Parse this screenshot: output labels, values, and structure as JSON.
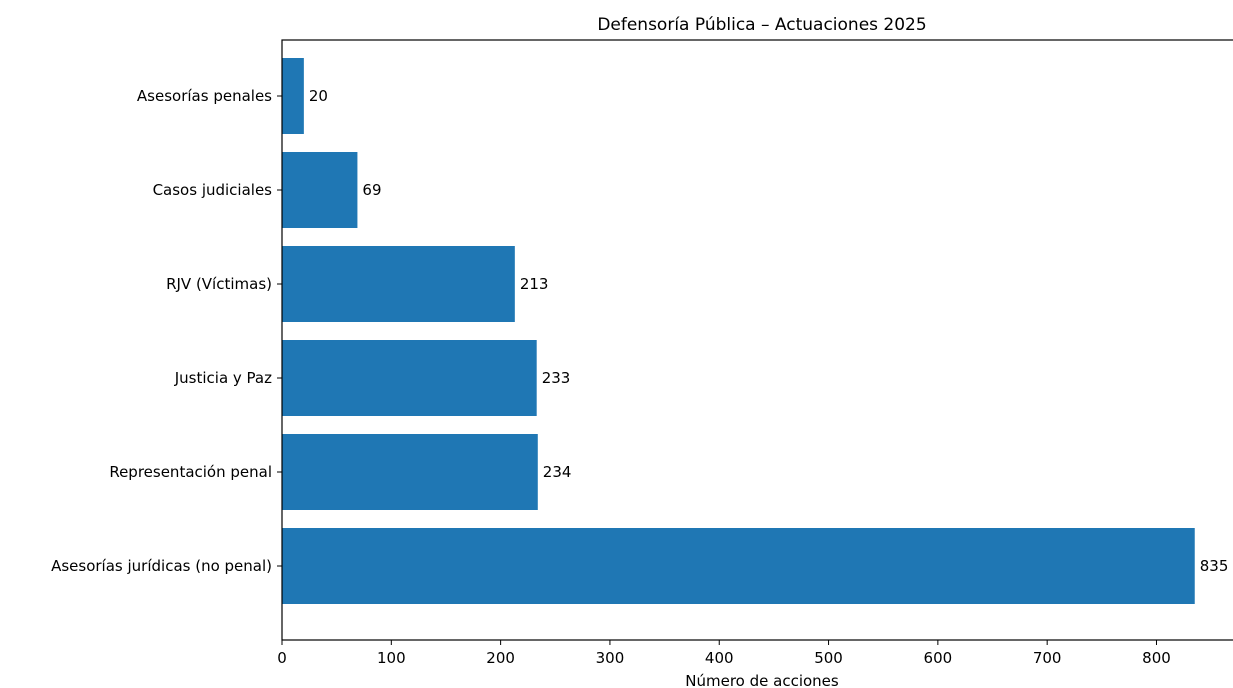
{
  "chart_data": {
    "type": "bar",
    "orientation": "horizontal",
    "title": "Defensoría Pública – Actuaciones 2025",
    "xlabel": "Número de acciones",
    "ylabel": "",
    "categories": [
      "Asesorías penales",
      "Casos judiciales",
      "RJV (Víctimas)",
      "Justicia y Paz",
      "Representación penal",
      "Asesorías jurídicas (no penal)"
    ],
    "values": [
      20,
      69,
      213,
      233,
      234,
      835
    ],
    "value_labels": [
      "20",
      "69",
      "213",
      "233",
      "234",
      "835"
    ],
    "xticks": [
      "0",
      "100",
      "200",
      "300",
      "400",
      "500",
      "600",
      "700",
      "800"
    ],
    "xlim": [
      0,
      870
    ],
    "bar_color": "#1f77b4",
    "grid": false
  }
}
